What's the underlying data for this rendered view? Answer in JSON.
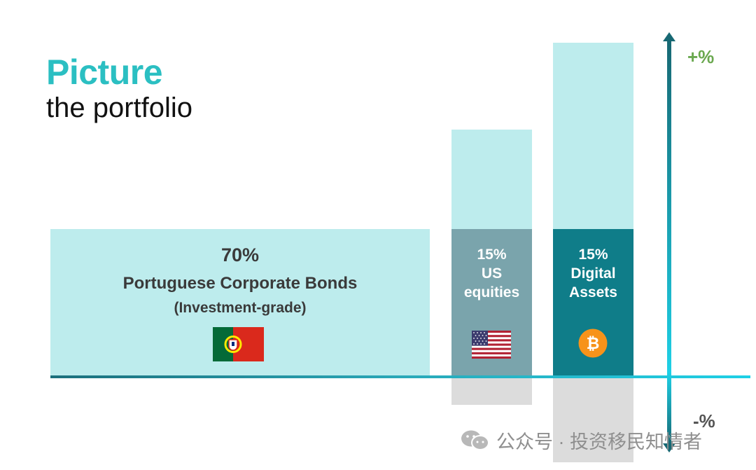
{
  "title": {
    "main": "Picture",
    "sub": "the portfolio"
  },
  "allocations": [
    {
      "percent": "70%",
      "label": "Portuguese Corporate Bonds",
      "sublabel": "(Investment-grade)",
      "icon": "portugal-flag-icon",
      "color": "#bdeced"
    },
    {
      "percent": "15%",
      "lines": [
        "US",
        "equities"
      ],
      "icon": "us-flag-icon",
      "color": "#7aa4ac"
    },
    {
      "percent": "15%",
      "lines": [
        "Digital",
        "Assets"
      ],
      "icon": "bitcoin-icon",
      "color": "#0f7d89"
    }
  ],
  "axis": {
    "top_label": "+%",
    "bottom_label": "-%"
  },
  "watermark": {
    "icon": "wechat-icon",
    "text": "公众号 · 投资移民知情者"
  },
  "colors": {
    "title_accent": "#2bbfc2",
    "upside": "#bdeced",
    "downside": "#dcdcdc",
    "plus_label": "#6aa84f"
  }
}
